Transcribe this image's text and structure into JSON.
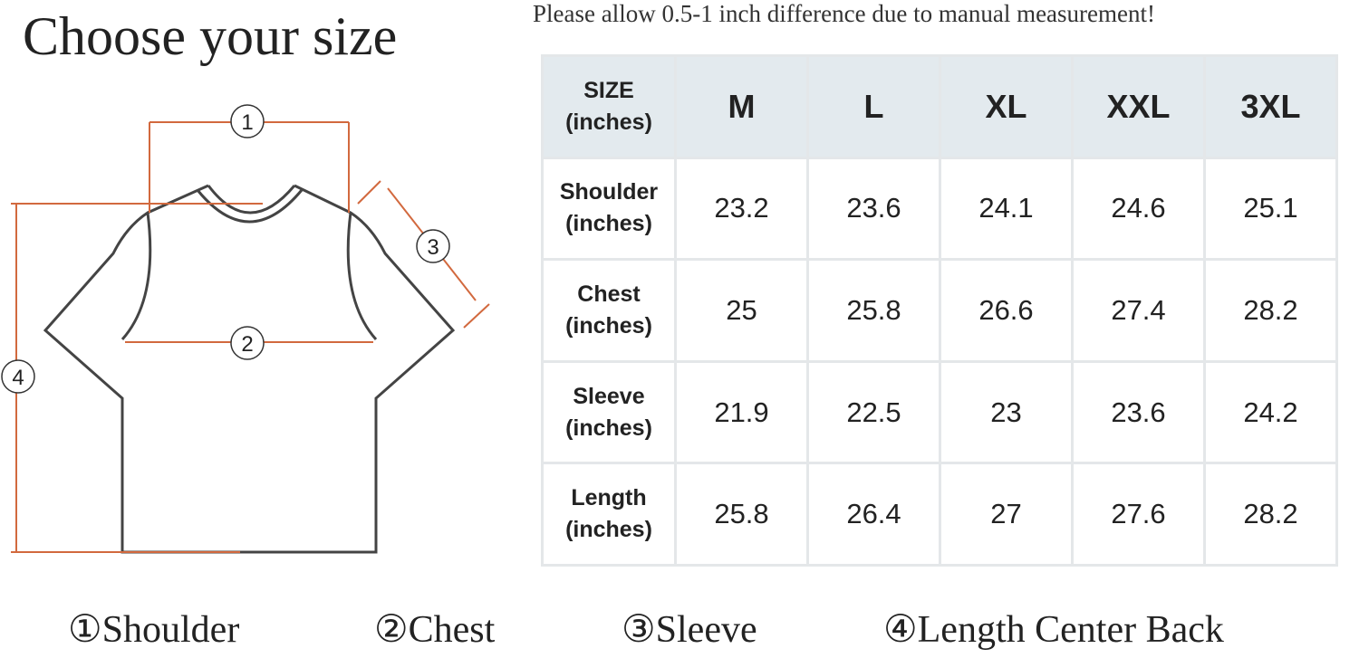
{
  "title": "Choose your size",
  "note": "Please allow 0.5-1 inch difference due to manual measurement!",
  "diagram": {
    "markers": [
      "1",
      "2",
      "3",
      "4"
    ]
  },
  "table": {
    "corner": {
      "name": "SIZE",
      "unit": "(inches)"
    },
    "sizes": [
      "M",
      "L",
      "XL",
      "XXL",
      "3XL"
    ],
    "rows": [
      {
        "name": "Shoulder",
        "unit": "(inches)",
        "values": [
          23.2,
          23.6,
          24.1,
          24.6,
          25.1
        ]
      },
      {
        "name": "Chest",
        "unit": "(inches)",
        "values": [
          25,
          25.8,
          26.6,
          27.4,
          28.2
        ]
      },
      {
        "name": "Sleeve",
        "unit": "(inches)",
        "values": [
          21.9,
          22.5,
          23,
          23.6,
          24.2
        ]
      },
      {
        "name": "Length",
        "unit": "(inches)",
        "values": [
          25.8,
          26.4,
          27,
          27.6,
          28.2
        ]
      }
    ]
  },
  "legend": [
    "①Shoulder",
    "②Chest",
    "③Sleeve",
    "④Length Center Back"
  ]
}
